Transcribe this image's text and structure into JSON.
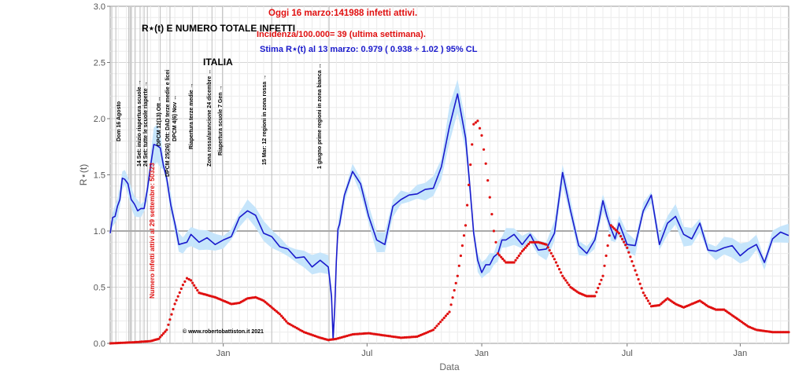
{
  "colors": {
    "rt_line": "#1a1acc",
    "rt_band": "#c6e5fb",
    "infected": "#e01010",
    "title": "#000000",
    "today": "#e01010",
    "estimate": "#1a1acc"
  },
  "annotations": {
    "title": "R⋆(t) E NUMERO TOTALE INFETTI",
    "country": "ITALIA",
    "today_line": "Oggi 16 marzo:141988 infetti attivi.",
    "incidence_line": "Incidenza/100.000= 39 (ultima settimana).",
    "estimate_line": "Stima R⋆(t) al 13 marzo: 0.979 ( 0.938 ÷ 1.02 ) 95% CL",
    "copyright": "© www.robertobattiston.it 2021",
    "infected_note": "Numero infetti attivi al 29 settembre: 50323"
  },
  "event_labels": [
    "Dom 16 Agosto",
    "14 Set: inizio riapertura scuole →",
    "24 Set: tutte le scuole riaperte →",
    "DPCM 12(13) Ott ↔",
    "DPCM 25(26) Ott: DAD terze medie e licei",
    "DPCM 4(6) Nov ↔",
    "Riapertura terze medie →",
    "Zona rossa/arancione 24 dicembre ↔",
    "Riapertura scuole 7 Gen →",
    "15 Mar: 12 regioni in zona rossa →",
    "1 giugno prime regioni in zona bianca ↔"
  ],
  "chart_data": {
    "type": "line",
    "xlabel": "Data",
    "ylabel": "R⋆(t)",
    "ylim": [
      0,
      3
    ],
    "yticks": [
      "0.0",
      "0.5",
      "1.0",
      "1.5",
      "2.0",
      "2.5",
      "3.0"
    ],
    "xticks": [
      "Jan",
      "Jul",
      "Jan",
      "Jul",
      "Jan"
    ],
    "reference_line": 1.0,
    "grid": true,
    "series": [
      {
        "style": "line-with-band",
        "x": [
          0,
          3,
          6,
          9,
          12,
          15,
          18,
          22,
          26,
          30,
          34,
          38,
          42,
          46,
          50,
          54,
          58,
          62,
          66,
          70,
          75,
          80,
          85,
          90,
          95,
          100,
          110,
          120,
          130,
          140,
          150,
          160,
          170,
          180,
          190,
          200,
          210,
          220,
          230,
          240,
          250,
          260,
          270,
          274,
          276,
          278,
          280,
          282,
          284,
          290,
          300,
          310,
          320,
          330,
          340,
          350,
          360,
          370,
          380,
          390,
          400,
          410,
          420,
          430,
          440,
          445,
          450,
          455,
          460,
          465,
          470,
          475,
          480,
          485,
          490,
          500,
          510,
          520,
          530,
          540,
          550,
          560,
          570,
          580,
          590,
          600,
          605,
          610,
          615,
          620,
          625,
          630,
          640,
          650,
          660,
          670,
          680,
          690,
          700,
          710,
          720,
          730,
          740,
          750,
          760,
          770,
          780,
          790,
          800,
          810,
          820,
          830,
          840
        ],
        "values": [
          1.0,
          1.1,
          1.15,
          1.2,
          1.3,
          1.45,
          1.48,
          1.4,
          1.3,
          1.22,
          1.2,
          1.18,
          1.22,
          1.35,
          1.6,
          1.75,
          1.78,
          1.72,
          1.6,
          1.45,
          1.25,
          1.05,
          0.9,
          0.87,
          0.92,
          0.95,
          0.92,
          0.92,
          0.9,
          0.9,
          0.97,
          1.1,
          1.2,
          1.12,
          1.0,
          0.93,
          0.88,
          0.82,
          0.78,
          0.75,
          0.7,
          0.72,
          0.7,
          0.4,
          0.05,
          0.3,
          0.75,
          1.0,
          1.08,
          1.3,
          1.55,
          1.4,
          1.15,
          0.9,
          0.9,
          1.2,
          1.3,
          1.3,
          1.35,
          1.35,
          1.4,
          1.55,
          1.95,
          2.2,
          1.85,
          1.4,
          1.0,
          0.72,
          0.65,
          0.68,
          0.72,
          0.75,
          0.82,
          0.9,
          0.94,
          0.95,
          0.9,
          0.95,
          0.85,
          0.82,
          1.0,
          1.5,
          1.2,
          0.85,
          0.82,
          0.9,
          1.1,
          1.25,
          1.15,
          1.0,
          0.95,
          1.05,
          0.9,
          0.85,
          1.2,
          1.3,
          0.9,
          1.05,
          1.15,
          0.95,
          0.95,
          1.05,
          0.85,
          0.8,
          0.87,
          0.85,
          0.8,
          0.82,
          0.9,
          0.7,
          0.95,
          0.97,
          0.98
        ]
      },
      {
        "style": "dots",
        "x": [
          0,
          30,
          50,
          60,
          70,
          80,
          90,
          95,
          100,
          110,
          120,
          130,
          140,
          150,
          160,
          170,
          180,
          190,
          200,
          210,
          220,
          240,
          260,
          270,
          280,
          300,
          320,
          340,
          360,
          380,
          400,
          420,
          430,
          440,
          450,
          455,
          460,
          465,
          470,
          475,
          480,
          490,
          500,
          510,
          520,
          530,
          540,
          550,
          560,
          570,
          580,
          590,
          600,
          610,
          620,
          630,
          640,
          650,
          660,
          670,
          680,
          690,
          700,
          710,
          720,
          730,
          740,
          750,
          760,
          770,
          780,
          790,
          800,
          810,
          820,
          830,
          840
        ],
        "values": [
          0.0,
          0.01,
          0.02,
          0.04,
          0.12,
          0.35,
          0.52,
          0.58,
          0.56,
          0.45,
          0.43,
          0.41,
          0.38,
          0.35,
          0.36,
          0.4,
          0.41,
          0.38,
          0.32,
          0.26,
          0.18,
          0.1,
          0.05,
          0.03,
          0.04,
          0.08,
          0.09,
          0.07,
          0.05,
          0.06,
          0.12,
          0.28,
          0.6,
          1.05,
          1.95,
          1.98,
          1.85,
          1.6,
          1.3,
          1.0,
          0.8,
          0.72,
          0.72,
          0.82,
          0.9,
          0.9,
          0.88,
          0.75,
          0.6,
          0.5,
          0.45,
          0.42,
          0.42,
          0.6,
          1.05,
          0.98,
          0.85,
          0.65,
          0.45,
          0.33,
          0.34,
          0.4,
          0.35,
          0.32,
          0.35,
          0.38,
          0.33,
          0.3,
          0.3,
          0.25,
          0.2,
          0.15,
          0.12,
          0.11,
          0.1,
          0.1,
          0.1
        ]
      }
    ]
  }
}
